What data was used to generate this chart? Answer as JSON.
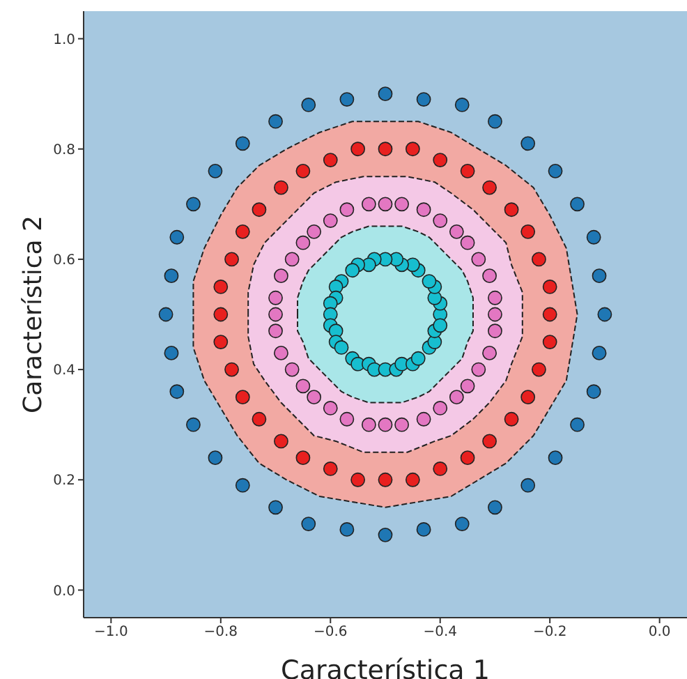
{
  "chart_data": {
    "type": "scatter",
    "xlabel": "Característica 1",
    "ylabel": "Característica 2",
    "xlim": [
      -1.05,
      0.05
    ],
    "ylim": [
      -0.05,
      1.05
    ],
    "xticks": [
      {
        "value": -1,
        "label": "−1.0"
      },
      {
        "value": -0.8,
        "label": "−0.8"
      },
      {
        "value": -0.6,
        "label": "−0.6"
      },
      {
        "value": -0.4,
        "label": "−0.4"
      },
      {
        "value": -0.2,
        "label": "−0.2"
      },
      {
        "value": 0,
        "label": "0.0"
      }
    ],
    "yticks": [
      {
        "value": 0,
        "label": "0.0"
      },
      {
        "value": 0.2,
        "label": "0.2"
      },
      {
        "value": 0.4,
        "label": "0.4"
      },
      {
        "value": 0.6,
        "label": "0.6"
      },
      {
        "value": 0.8,
        "label": "0.8"
      },
      {
        "value": 1,
        "label": "1.0"
      }
    ],
    "grid": false,
    "legend": false,
    "bands": [
      {
        "axis": "y",
        "from": -0.05,
        "to": 1.05,
        "color": "#a6c8e0"
      }
    ],
    "series": [
      {
        "type": "area",
        "color": "#f2a9a3",
        "line_style": "dashed",
        "x": [
          -0.85,
          -0.85,
          -0.83,
          -0.8,
          -0.77,
          -0.73,
          -0.68,
          -0.62,
          -0.56,
          -0.5,
          -0.44,
          -0.38,
          -0.33,
          -0.28,
          -0.23,
          -0.2,
          -0.17,
          -0.16,
          -0.15,
          -0.16,
          -0.17,
          -0.2,
          -0.23,
          -0.28,
          -0.33,
          -0.38,
          -0.44,
          -0.5,
          -0.56,
          -0.62,
          -0.68,
          -0.73,
          -0.77,
          -0.8,
          -0.83,
          -0.85,
          -0.85
        ],
        "values": [
          0.5,
          0.56,
          0.62,
          0.68,
          0.73,
          0.77,
          0.8,
          0.83,
          0.85,
          0.85,
          0.85,
          0.83,
          0.8,
          0.77,
          0.73,
          0.68,
          0.62,
          0.56,
          0.5,
          0.44,
          0.38,
          0.33,
          0.28,
          0.23,
          0.2,
          0.17,
          0.16,
          0.15,
          0.16,
          0.17,
          0.2,
          0.23,
          0.28,
          0.33,
          0.38,
          0.44,
          0.5
        ]
      },
      {
        "type": "area",
        "color": "#f4c8e6",
        "line_style": "dashed",
        "x": [
          -0.75,
          -0.75,
          -0.74,
          -0.72,
          -0.69,
          -0.66,
          -0.63,
          -0.59,
          -0.54,
          -0.5,
          -0.46,
          -0.41,
          -0.38,
          -0.34,
          -0.31,
          -0.28,
          -0.27,
          -0.25,
          -0.25,
          -0.25,
          -0.27,
          -0.28,
          -0.31,
          -0.34,
          -0.38,
          -0.41,
          -0.46,
          -0.5,
          -0.54,
          -0.59,
          -0.63,
          -0.66,
          -0.69,
          -0.72,
          -0.74,
          -0.75,
          -0.75
        ],
        "values": [
          0.5,
          0.54,
          0.59,
          0.63,
          0.66,
          0.69,
          0.72,
          0.74,
          0.75,
          0.75,
          0.75,
          0.74,
          0.72,
          0.69,
          0.66,
          0.63,
          0.59,
          0.54,
          0.5,
          0.46,
          0.41,
          0.38,
          0.34,
          0.31,
          0.28,
          0.27,
          0.25,
          0.25,
          0.25,
          0.27,
          0.28,
          0.31,
          0.34,
          0.38,
          0.41,
          0.46,
          0.5
        ]
      },
      {
        "type": "area",
        "color": "#a9e6e8",
        "line_style": "dashed",
        "x": [
          -0.66,
          -0.66,
          -0.65,
          -0.64,
          -0.62,
          -0.6,
          -0.58,
          -0.56,
          -0.53,
          -0.5,
          -0.47,
          -0.44,
          -0.42,
          -0.4,
          -0.38,
          -0.36,
          -0.35,
          -0.34,
          -0.34,
          -0.34,
          -0.35,
          -0.36,
          -0.38,
          -0.4,
          -0.42,
          -0.44,
          -0.47,
          -0.5,
          -0.53,
          -0.56,
          -0.58,
          -0.6,
          -0.62,
          -0.64,
          -0.65,
          -0.66,
          -0.66
        ],
        "values": [
          0.5,
          0.53,
          0.56,
          0.58,
          0.6,
          0.62,
          0.64,
          0.65,
          0.66,
          0.66,
          0.66,
          0.65,
          0.64,
          0.62,
          0.6,
          0.58,
          0.56,
          0.53,
          0.5,
          0.47,
          0.45,
          0.42,
          0.4,
          0.38,
          0.36,
          0.35,
          0.34,
          0.34,
          0.34,
          0.35,
          0.36,
          0.38,
          0.4,
          0.42,
          0.45,
          0.47,
          0.5
        ]
      },
      {
        "marker": "circle",
        "color": "#1f77b4",
        "x": [
          -0.1,
          -0.11,
          -0.12,
          -0.15,
          -0.19,
          -0.24,
          -0.3,
          -0.36,
          -0.43,
          -0.5,
          -0.57,
          -0.64,
          -0.7,
          -0.76,
          -0.81,
          -0.85,
          -0.88,
          -0.89,
          -0.9,
          -0.89,
          -0.88,
          -0.85,
          -0.81,
          -0.76,
          -0.7,
          -0.64,
          -0.57,
          -0.5,
          -0.43,
          -0.36,
          -0.3,
          -0.24,
          -0.19,
          -0.15,
          -0.12,
          -0.11
        ],
        "values": [
          0.5,
          0.57,
          0.64,
          0.7,
          0.76,
          0.81,
          0.85,
          0.88,
          0.89,
          0.9,
          0.89,
          0.88,
          0.85,
          0.81,
          0.76,
          0.7,
          0.64,
          0.57,
          0.5,
          0.43,
          0.36,
          0.3,
          0.24,
          0.19,
          0.15,
          0.12,
          0.11,
          0.1,
          0.11,
          0.12,
          0.15,
          0.19,
          0.24,
          0.3,
          0.36,
          0.43
        ]
      },
      {
        "marker": "circle",
        "color": "#e8201f",
        "x": [
          -0.2,
          -0.2,
          -0.22,
          -0.24,
          -0.27,
          -0.31,
          -0.35,
          -0.4,
          -0.45,
          -0.5,
          -0.55,
          -0.6,
          -0.65,
          -0.69,
          -0.73,
          -0.76,
          -0.78,
          -0.8,
          -0.8,
          -0.8,
          -0.78,
          -0.76,
          -0.73,
          -0.69,
          -0.65,
          -0.6,
          -0.55,
          -0.5,
          -0.45,
          -0.4,
          -0.35,
          -0.31,
          -0.27,
          -0.24,
          -0.22,
          -0.2
        ],
        "values": [
          0.5,
          0.55,
          0.6,
          0.65,
          0.69,
          0.73,
          0.76,
          0.78,
          0.8,
          0.8,
          0.8,
          0.78,
          0.76,
          0.73,
          0.69,
          0.65,
          0.6,
          0.55,
          0.5,
          0.45,
          0.4,
          0.35,
          0.31,
          0.27,
          0.24,
          0.22,
          0.2,
          0.2,
          0.2,
          0.22,
          0.24,
          0.27,
          0.31,
          0.35,
          0.4,
          0.45
        ]
      },
      {
        "marker": "circle",
        "color": "#e377c2",
        "x": [
          -0.3,
          -0.3,
          -0.31,
          -0.33,
          -0.35,
          -0.37,
          -0.4,
          -0.43,
          -0.47,
          -0.5,
          -0.53,
          -0.57,
          -0.6,
          -0.63,
          -0.65,
          -0.67,
          -0.69,
          -0.7,
          -0.7,
          -0.7,
          -0.69,
          -0.67,
          -0.65,
          -0.63,
          -0.6,
          -0.57,
          -0.53,
          -0.5,
          -0.47,
          -0.43,
          -0.4,
          -0.37,
          -0.35,
          -0.33,
          -0.31,
          -0.3
        ],
        "values": [
          0.5,
          0.53,
          0.57,
          0.6,
          0.63,
          0.65,
          0.67,
          0.69,
          0.7,
          0.7,
          0.7,
          0.69,
          0.67,
          0.65,
          0.63,
          0.6,
          0.57,
          0.53,
          0.5,
          0.47,
          0.43,
          0.4,
          0.37,
          0.35,
          0.33,
          0.31,
          0.3,
          0.3,
          0.3,
          0.31,
          0.33,
          0.35,
          0.37,
          0.4,
          0.43,
          0.47
        ]
      },
      {
        "marker": "circle",
        "color": "#17becf",
        "x": [
          -0.4,
          -0.4,
          -0.41,
          -0.41,
          -0.42,
          -0.44,
          -0.45,
          -0.47,
          -0.48,
          -0.5,
          -0.52,
          -0.53,
          -0.55,
          -0.56,
          -0.58,
          -0.59,
          -0.59,
          -0.6,
          -0.6,
          -0.6,
          -0.59,
          -0.59,
          -0.58,
          -0.56,
          -0.55,
          -0.53,
          -0.52,
          -0.5,
          -0.48,
          -0.47,
          -0.45,
          -0.44,
          -0.42,
          -0.41,
          -0.41,
          -0.4
        ],
        "values": [
          0.5,
          0.52,
          0.53,
          0.55,
          0.56,
          0.58,
          0.59,
          0.59,
          0.6,
          0.6,
          0.6,
          0.59,
          0.59,
          0.58,
          0.56,
          0.55,
          0.53,
          0.52,
          0.5,
          0.48,
          0.47,
          0.45,
          0.44,
          0.42,
          0.41,
          0.41,
          0.4,
          0.4,
          0.4,
          0.41,
          0.41,
          0.42,
          0.44,
          0.45,
          0.47,
          0.48
        ]
      }
    ]
  }
}
